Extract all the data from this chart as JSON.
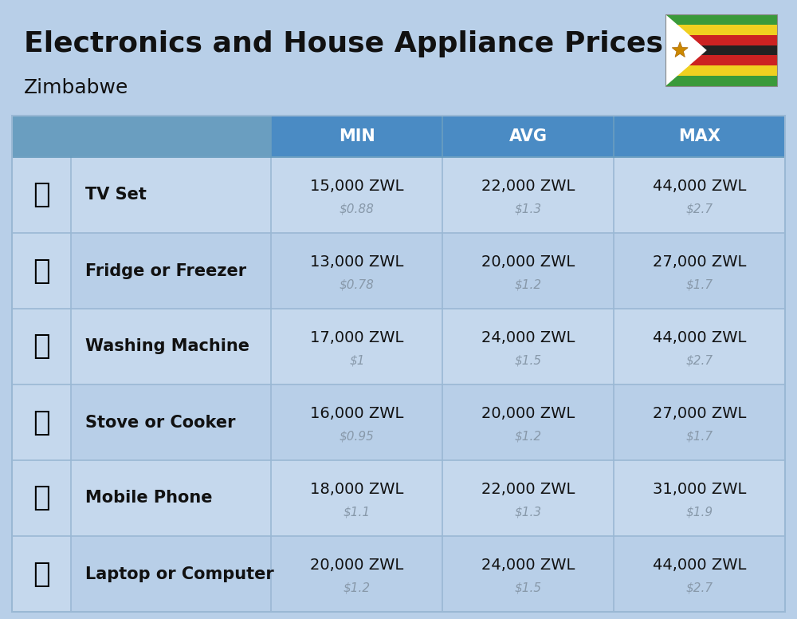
{
  "title": "Electronics and House Appliance Prices",
  "subtitle": "Zimbabwe",
  "bg_color": "#b8cfe8",
  "header_bg": "#4a8bc4",
  "header_text_color": "#ffffff",
  "row_bg_even": "#c5d8ed",
  "row_bg_odd": "#b8cfe8",
  "icon_col_bg": "#c5d8ed",
  "cell_border_color": "#9ab8d4",
  "header_border_color": "#6a9ec0",
  "columns": [
    "",
    "",
    "MIN",
    "AVG",
    "MAX"
  ],
  "rows": [
    {
      "name": "TV Set",
      "min_zwl": "15,000 ZWL",
      "min_usd": "$0.88",
      "avg_zwl": "22,000 ZWL",
      "avg_usd": "$1.3",
      "max_zwl": "44,000 ZWL",
      "max_usd": "$2.7"
    },
    {
      "name": "Fridge or Freezer",
      "min_zwl": "13,000 ZWL",
      "min_usd": "$0.78",
      "avg_zwl": "20,000 ZWL",
      "avg_usd": "$1.2",
      "max_zwl": "27,000 ZWL",
      "max_usd": "$1.7"
    },
    {
      "name": "Washing Machine",
      "min_zwl": "17,000 ZWL",
      "min_usd": "$1",
      "avg_zwl": "24,000 ZWL",
      "avg_usd": "$1.5",
      "max_zwl": "44,000 ZWL",
      "max_usd": "$2.7"
    },
    {
      "name": "Stove or Cooker",
      "min_zwl": "16,000 ZWL",
      "min_usd": "$0.95",
      "avg_zwl": "20,000 ZWL",
      "avg_usd": "$1.2",
      "max_zwl": "27,000 ZWL",
      "max_usd": "$1.7"
    },
    {
      "name": "Mobile Phone",
      "min_zwl": "18,000 ZWL",
      "min_usd": "$1.1",
      "avg_zwl": "22,000 ZWL",
      "avg_usd": "$1.3",
      "max_zwl": "31,000 ZWL",
      "max_usd": "$1.9"
    },
    {
      "name": "Laptop or Computer",
      "min_zwl": "20,000 ZWL",
      "min_usd": "$1.2",
      "avg_zwl": "24,000 ZWL",
      "avg_usd": "$1.5",
      "max_zwl": "44,000 ZWL",
      "max_usd": "$2.7"
    }
  ],
  "title_fontsize": 26,
  "subtitle_fontsize": 18,
  "header_fontsize": 15,
  "cell_fontsize": 14,
  "name_fontsize": 15,
  "usd_fontsize": 11,
  "usd_color": "#8899aa",
  "flag_stripe_colors": [
    "#3a9a3a",
    "#f0d020",
    "#cc2222",
    "#222222",
    "#cc2222",
    "#f0d020",
    "#3a9a3a"
  ]
}
